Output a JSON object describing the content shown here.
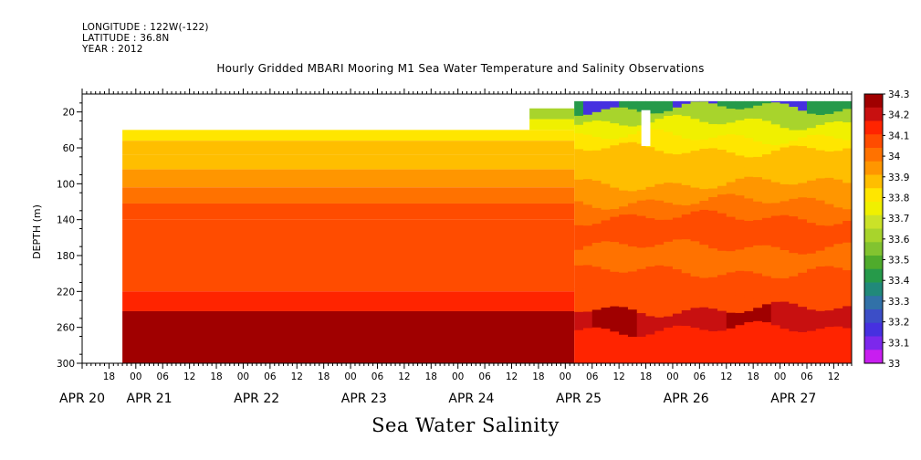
{
  "header": {
    "longitude": "LONGITUDE : 122W(-122)",
    "latitude": "LATITUDE : 36.8N",
    "year": "YEAR : 2012"
  },
  "chart_data": {
    "type": "heatmap",
    "title": "Hourly Gridded MBARI Mooring M1 Sea Water Temperature and Salinity Observations",
    "caption": "Sea Water Salinity",
    "ylabel": "DEPTH (m)",
    "xlabel": "",
    "x_start": "APR 20 12:00",
    "x_end": "APR 27 16:00",
    "y_range_m": [
      0,
      300
    ],
    "y_inverted": true,
    "y_ticks": [
      20,
      60,
      100,
      140,
      180,
      220,
      260,
      300
    ],
    "x_hour_ticks": [
      {
        "day": 0,
        "hour": 18,
        "label": "18"
      },
      {
        "day": 1,
        "hour": 0,
        "label": "00"
      },
      {
        "day": 1,
        "hour": 6,
        "label": "06"
      },
      {
        "day": 1,
        "hour": 12,
        "label": "12"
      },
      {
        "day": 1,
        "hour": 18,
        "label": "18"
      },
      {
        "day": 2,
        "hour": 0,
        "label": "00"
      },
      {
        "day": 2,
        "hour": 6,
        "label": "06"
      },
      {
        "day": 2,
        "hour": 12,
        "label": "12"
      },
      {
        "day": 2,
        "hour": 18,
        "label": "18"
      },
      {
        "day": 3,
        "hour": 0,
        "label": "00"
      },
      {
        "day": 3,
        "hour": 6,
        "label": "06"
      },
      {
        "day": 3,
        "hour": 12,
        "label": "12"
      },
      {
        "day": 3,
        "hour": 18,
        "label": "18"
      },
      {
        "day": 4,
        "hour": 0,
        "label": "00"
      },
      {
        "day": 4,
        "hour": 6,
        "label": "06"
      },
      {
        "day": 4,
        "hour": 12,
        "label": "12"
      },
      {
        "day": 4,
        "hour": 18,
        "label": "18"
      },
      {
        "day": 5,
        "hour": 0,
        "label": "00"
      },
      {
        "day": 5,
        "hour": 6,
        "label": "06"
      },
      {
        "day": 5,
        "hour": 12,
        "label": "12"
      },
      {
        "day": 5,
        "hour": 18,
        "label": "18"
      },
      {
        "day": 6,
        "hour": 0,
        "label": "00"
      },
      {
        "day": 6,
        "hour": 6,
        "label": "06"
      },
      {
        "day": 6,
        "hour": 12,
        "label": "12"
      },
      {
        "day": 6,
        "hour": 18,
        "label": "18"
      },
      {
        "day": 7,
        "hour": 0,
        "label": "00"
      },
      {
        "day": 7,
        "hour": 6,
        "label": "06"
      },
      {
        "day": 7,
        "hour": 12,
        "label": "12"
      }
    ],
    "x_day_labels": [
      {
        "day": 0,
        "hour": 12,
        "label": "APR 20"
      },
      {
        "day": 1,
        "hour": 3,
        "label": "APR 21"
      },
      {
        "day": 2,
        "hour": 3,
        "label": "APR 22"
      },
      {
        "day": 3,
        "hour": 3,
        "label": "APR 23"
      },
      {
        "day": 4,
        "hour": 3,
        "label": "APR 24"
      },
      {
        "day": 5,
        "hour": 3,
        "label": "APR 25"
      },
      {
        "day": 6,
        "hour": 3,
        "label": "APR 26"
      },
      {
        "day": 7,
        "hour": 3,
        "label": "APR 27"
      }
    ],
    "colorbar": {
      "levels": [
        "34.3",
        "34.2",
        "34.1",
        "34",
        "33.9",
        "33.8",
        "33.7",
        "33.6",
        "33.5",
        "33.4",
        "33.3",
        "33.2",
        "33.1",
        "33"
      ],
      "colors": [
        "#a00000",
        "#c81010",
        "#ff2400",
        "#ff4c00",
        "#ff7200",
        "#ff9600",
        "#ffbe00",
        "#ffe600",
        "#f0f000",
        "#cbe228",
        "#a8d42c",
        "#82c330",
        "#4fab2c",
        "#269a4a",
        "#21897a",
        "#3171a8",
        "#3c4ec7",
        "#4630e0",
        "#7c28ec",
        "#c81ef0"
      ]
    },
    "depth_bands_early": [
      {
        "top": 40,
        "bottom": 52,
        "value": 33.8
      },
      {
        "top": 52,
        "bottom": 68,
        "value": 33.85
      },
      {
        "top": 68,
        "bottom": 84,
        "value": 33.9
      },
      {
        "top": 84,
        "bottom": 104,
        "value": 33.95
      },
      {
        "top": 104,
        "bottom": 122,
        "value": 34.0
      },
      {
        "top": 122,
        "bottom": 140,
        "value": 34.05
      },
      {
        "top": 140,
        "bottom": 220,
        "value": 34.1
      },
      {
        "top": 220,
        "bottom": 242,
        "value": 34.15
      },
      {
        "top": 242,
        "bottom": 300,
        "value": 34.25
      }
    ],
    "depth_bands_late": [
      {
        "top": 8,
        "bottom": 16,
        "value": 33.4
      },
      {
        "top": 16,
        "bottom": 32,
        "value": 33.6
      },
      {
        "top": 32,
        "bottom": 48,
        "value": 33.75
      },
      {
        "top": 48,
        "bottom": 62,
        "value": 33.8
      },
      {
        "top": 62,
        "bottom": 80,
        "value": 33.85
      },
      {
        "top": 80,
        "bottom": 100,
        "value": 33.9
      },
      {
        "top": 100,
        "bottom": 120,
        "value": 33.95
      },
      {
        "top": 120,
        "bottom": 138,
        "value": 34.0
      },
      {
        "top": 138,
        "bottom": 170,
        "value": 34.05
      },
      {
        "top": 170,
        "bottom": 198,
        "value": 34.0
      },
      {
        "top": 198,
        "bottom": 222,
        "value": 34.05
      },
      {
        "top": 222,
        "bottom": 240,
        "value": 34.1
      },
      {
        "top": 240,
        "bottom": 262,
        "value": 34.2
      },
      {
        "top": 262,
        "bottom": 300,
        "value": 34.15
      }
    ],
    "data_start": "APR 20 21:00",
    "transition_time": "APR 25 02:00"
  }
}
